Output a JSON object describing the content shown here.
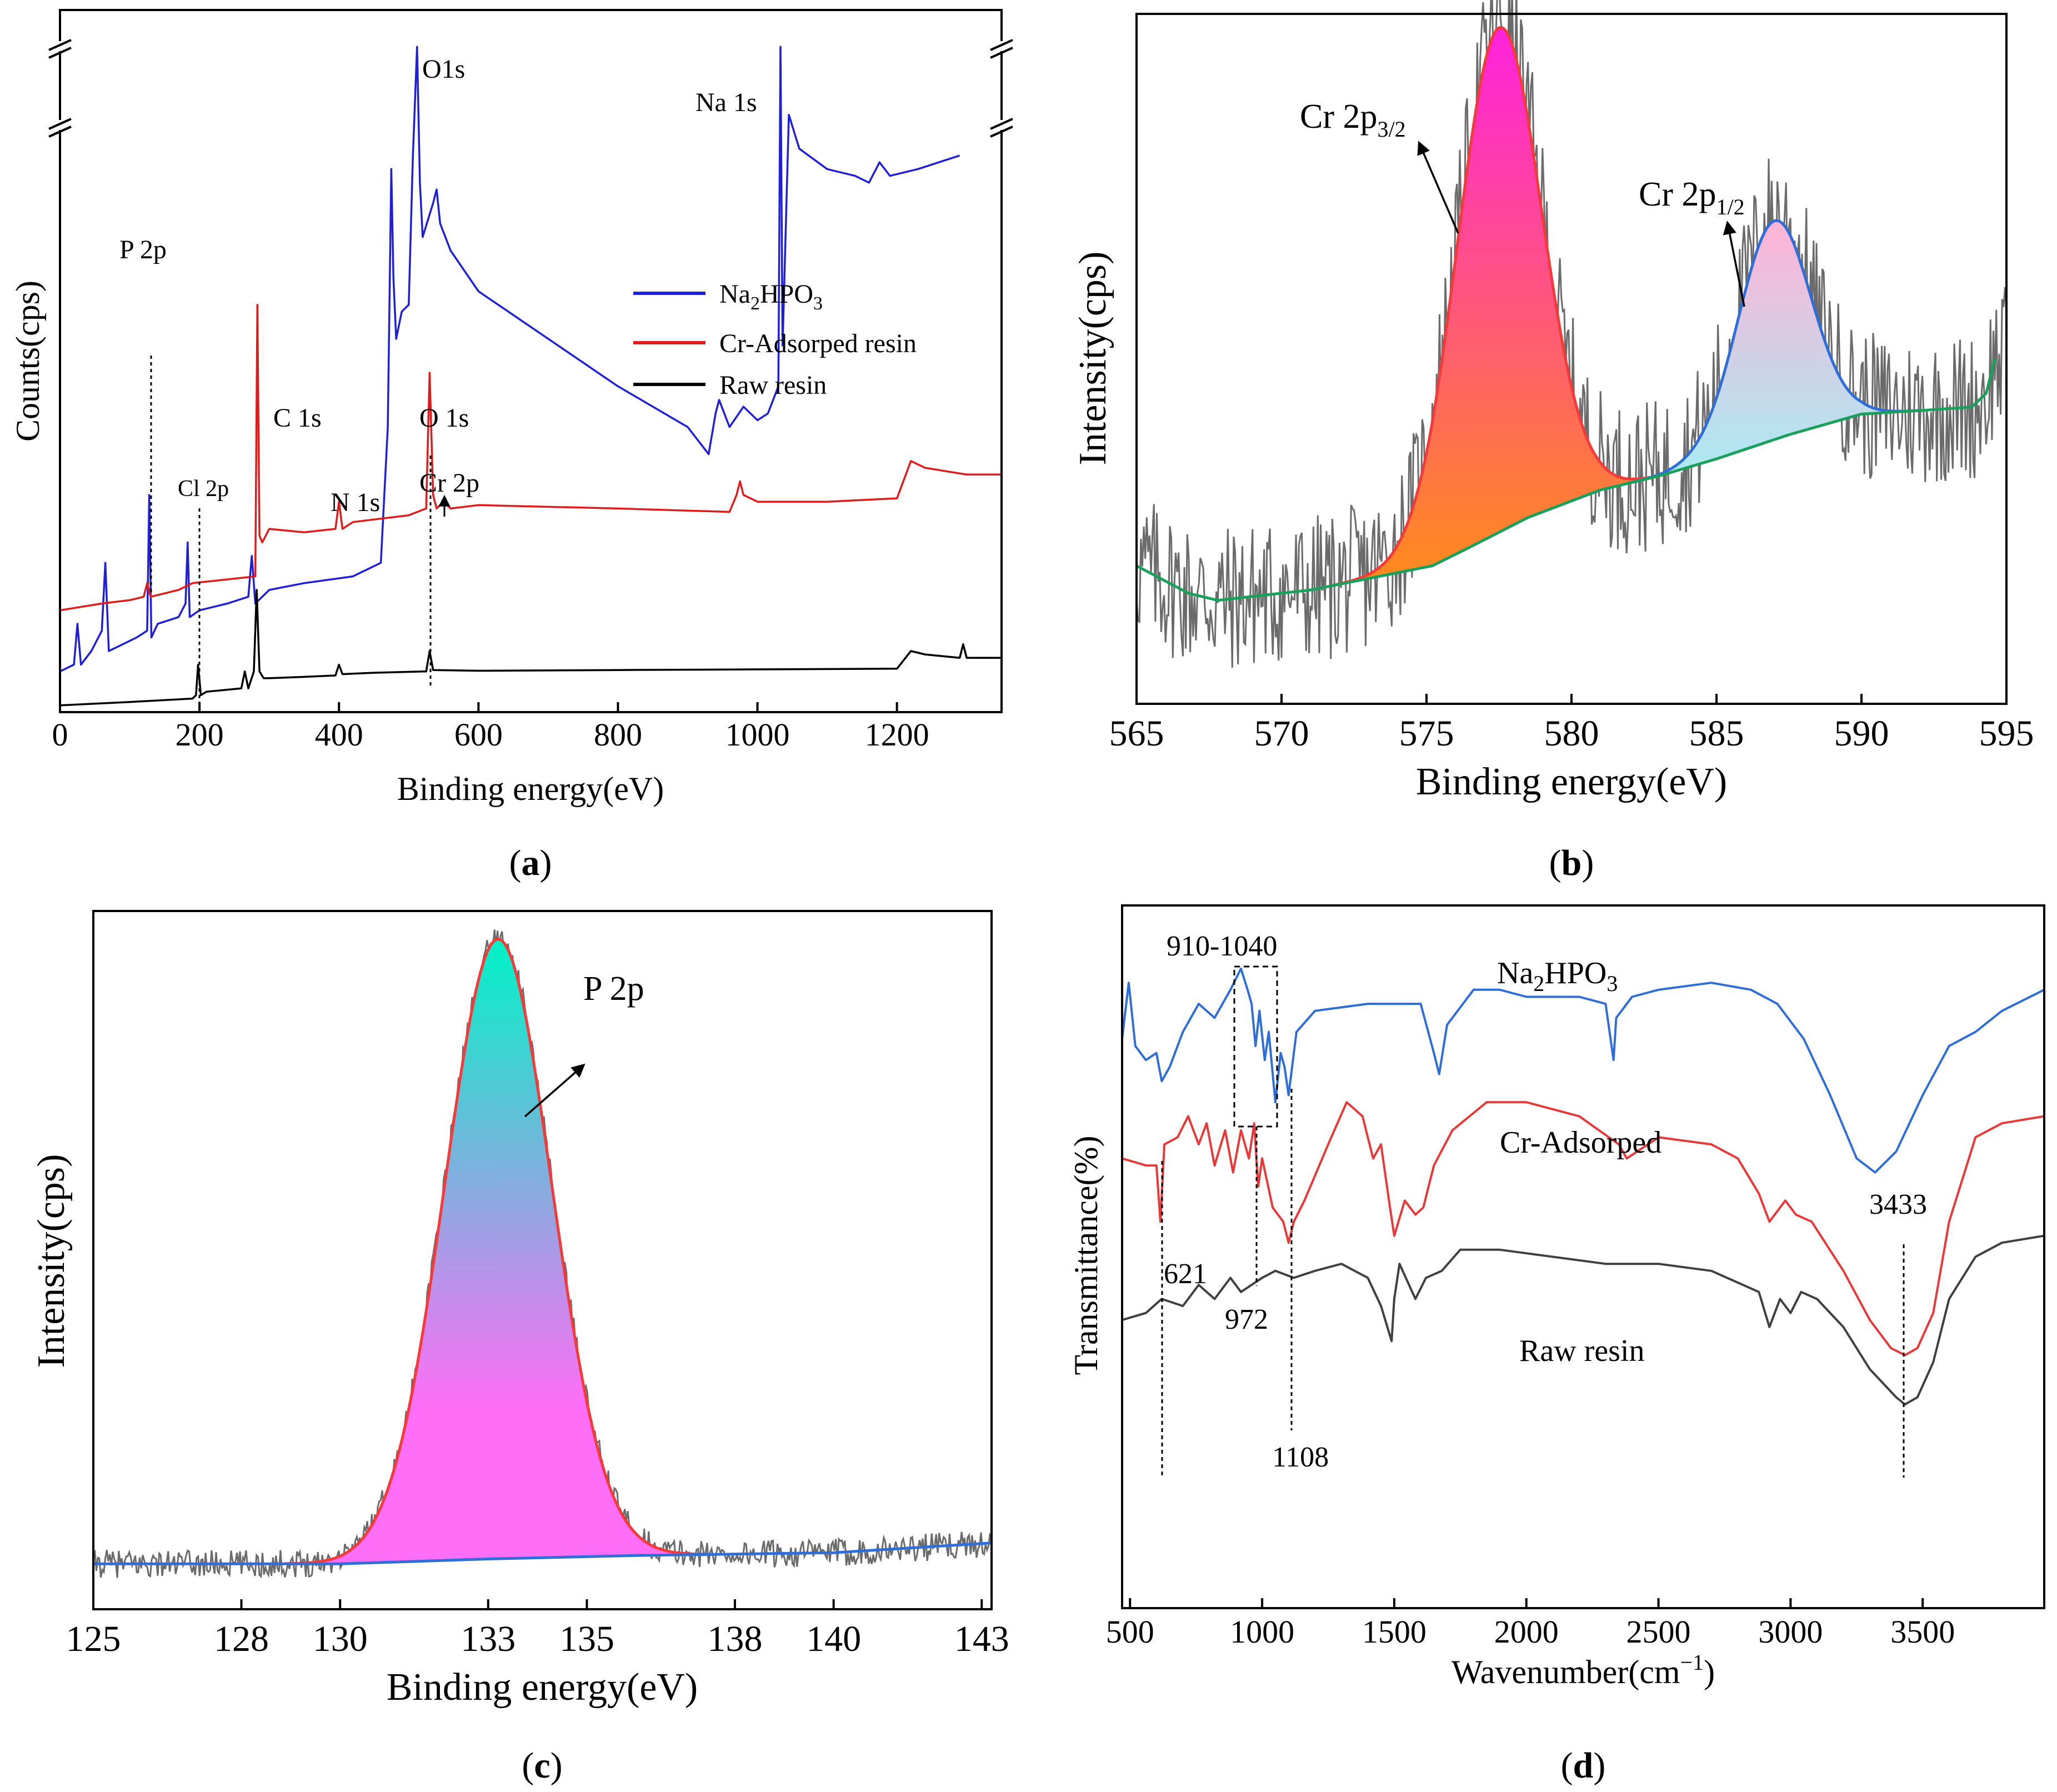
{
  "chart_data": [
    {
      "id": "a",
      "type": "line",
      "caption": "a",
      "xlabel": "Binding energy(eV)",
      "ylabel": "Counts(cps)",
      "xlim": [
        0,
        1350
      ],
      "ylim": [
        0,
        100
      ],
      "xticks": [
        0,
        200,
        400,
        600,
        800,
        1000,
        1200
      ],
      "legend_position": "right",
      "legend": [
        {
          "label": "Na₂HPO₃",
          "main": "Na",
          "sub": "2",
          "rest": "HPO",
          "sub2": "3",
          "color": "#1f1fd8"
        },
        {
          "label": "Cr-Adsorped resin",
          "color": "#e01b1b"
        },
        {
          "label": "Raw resin",
          "color": "#000000"
        }
      ],
      "series": [
        {
          "name": "Na2HPO3",
          "color": "#1f1fd8",
          "x": [
            0,
            20,
            25,
            30,
            45,
            60,
            65,
            70,
            90,
            110,
            125,
            128,
            131,
            140,
            170,
            180,
            183,
            186,
            200,
            240,
            270,
            275,
            280,
            300,
            350,
            420,
            460,
            470,
            475,
            478,
            482,
            490,
            500,
            506,
            512,
            516,
            520,
            535,
            540,
            545,
            560,
            600,
            700,
            800,
            900,
            930,
            940,
            945,
            960,
            980,
            1000,
            1015,
            1030,
            1033,
            1036,
            1045,
            1060,
            1100,
            1140,
            1160,
            1175,
            1190,
            1230,
            1260,
            1290
          ],
          "y": [
            6,
            7,
            13,
            7,
            9,
            12,
            22,
            9,
            10,
            11,
            12,
            32,
            11,
            13,
            14,
            16,
            25,
            14,
            15,
            16,
            17,
            23,
            16,
            18,
            19,
            20,
            22,
            42,
            80,
            64,
            55,
            59,
            60,
            82,
            98,
            78,
            70,
            75,
            77,
            72,
            68,
            62,
            55,
            48,
            42,
            38,
            44,
            46,
            42,
            45,
            43,
            44,
            48,
            98,
            54,
            88,
            83,
            80,
            79,
            78,
            81,
            79,
            80,
            81,
            82
          ]
        },
        {
          "name": "Cr-Adsorped resin",
          "color": "#e01b1b",
          "x": [
            0,
            60,
            100,
            120,
            125,
            130,
            150,
            170,
            190,
            280,
            283,
            286,
            290,
            300,
            350,
            395,
            400,
            405,
            420,
            500,
            525,
            530,
            535,
            540,
            550,
            560,
            600,
            800,
            960,
            970,
            975,
            980,
            1000,
            1100,
            1200,
            1220,
            1240,
            1300,
            1350
          ],
          "y": [
            15,
            16,
            16.5,
            17,
            19,
            17,
            17.5,
            18,
            19,
            20,
            60,
            26,
            25,
            27,
            26.5,
            27,
            31,
            27,
            28,
            29,
            30,
            50,
            32,
            30,
            31,
            30,
            30.5,
            30,
            29.5,
            32,
            34,
            32,
            31,
            31,
            31.5,
            37,
            36,
            35,
            35
          ]
        },
        {
          "name": "Raw resin",
          "color": "#000000",
          "x": [
            0,
            100,
            190,
            195,
            198,
            202,
            210,
            260,
            265,
            270,
            278,
            282,
            286,
            292,
            300,
            350,
            395,
            400,
            405,
            450,
            525,
            530,
            535,
            600,
            800,
            1000,
            1200,
            1220,
            1240,
            1290,
            1295,
            1300,
            1350
          ],
          "y": [
            1,
            1.5,
            2,
            2.5,
            7,
            2.5,
            3,
            3.5,
            6,
            3.5,
            6,
            18,
            6,
            5,
            5,
            5.2,
            5.4,
            7,
            5.6,
            5.8,
            6,
            9,
            6.2,
            6.1,
            6.2,
            6.3,
            6.4,
            9,
            8.5,
            8,
            10,
            8,
            8
          ]
        }
      ],
      "annotations": [
        "P 2p",
        "O1s",
        "Na 1s",
        "C 1s",
        "O 1s",
        "N 1s",
        "Cl 2p",
        "Cr 2p"
      ]
    },
    {
      "id": "b",
      "type": "area",
      "caption": "b",
      "xlabel": "Binding energy(eV)",
      "ylabel": "Intensity(cps)",
      "xlim": [
        565,
        595
      ],
      "ylim": [
        0,
        100
      ],
      "xticks": [
        565,
        570,
        575,
        580,
        585,
        590,
        595
      ],
      "peaks": [
        {
          "name": "Cr 2p3/2",
          "main": "Cr 2p",
          "sub": "3/2",
          "center": 577.5,
          "height": 98,
          "sigma": 1.45,
          "fill_top": "#ff22dd",
          "fill_bottom": "#ff8c1a",
          "stroke": "#f53a3a"
        },
        {
          "name": "Cr 2p1/2",
          "main": "Cr 2p",
          "sub": "1/2",
          "center": 587.0,
          "height": 70,
          "sigma": 1.25,
          "fill_top": "#ffb2d6",
          "fill_bottom": "#a8ecf4",
          "stroke": "#2f6ed8"
        }
      ],
      "background": {
        "x": [
          565,
          566.8,
          567.8,
          571,
          574,
          575.2,
          576.4,
          578.5,
          581,
          583,
          585,
          587.5,
          590,
          592,
          593.8,
          594.3,
          594.6
        ],
        "y": [
          20,
          16,
          15,
          16.5,
          19,
          20,
          22.5,
          27,
          31,
          33,
          35.5,
          39,
          42,
          42.5,
          43,
          45,
          50
        ],
        "color": "#19a05a"
      },
      "raw_color": "#6b6b6b"
    },
    {
      "id": "c",
      "type": "area",
      "caption": "c",
      "xlabel": "Binding energy(eV)",
      "ylabel": "Intensity(cps)",
      "xlim": [
        125,
        143.2
      ],
      "ylim": [
        0,
        100
      ],
      "xticks": [
        125,
        128,
        130,
        133,
        135,
        138,
        140,
        143
      ],
      "peaks": [
        {
          "name": "P 2p",
          "main": "P 2p",
          "sub": "",
          "center": 133.2,
          "height": 96,
          "sigma": 1.08,
          "fill_top": "#00f2c6",
          "fill_bottom": "#ff6ef6",
          "stroke": "#f53a3a"
        }
      ],
      "background": {
        "x": [
          125,
          130,
          133,
          136,
          140,
          143.2
        ],
        "y": [
          6.5,
          6.5,
          7.2,
          7.7,
          8.1,
          9.5
        ],
        "color": "#2f6ed8"
      },
      "raw_color": "#6b6b6b"
    },
    {
      "id": "d",
      "type": "line",
      "caption": "d",
      "xlabel": "Wavenumber(cm⁻¹)",
      "xlabel_main": "Wavenumber(cm",
      "xlabel_sup": "−1",
      "ylabel": "Transmittance(%)",
      "xlim": [
        470,
        3960
      ],
      "ylim": [
        0,
        100
      ],
      "xticks": [
        500,
        1000,
        1500,
        2000,
        2500,
        3000,
        3500
      ],
      "series": [
        {
          "name": "Na2HPO3",
          "label": "Na₂HPO₃",
          "main": "Na",
          "sub": "2",
          "rest": "HPO",
          "sub2": "3",
          "color": "#2f6ed8",
          "x": [
            470,
            495,
            520,
            560,
            600,
            620,
            650,
            700,
            760,
            820,
            880,
            920,
            945,
            960,
            975,
            990,
            1010,
            1025,
            1050,
            1070,
            1085,
            1100,
            1130,
            1200,
            1400,
            1600,
            1650,
            1670,
            1700,
            1760,
            1800,
            1900,
            2000,
            2200,
            2300,
            2330,
            2340,
            2360,
            2400,
            2500,
            2700,
            2850,
            2950,
            3050,
            3150,
            3250,
            3320,
            3400,
            3500,
            3600,
            3700,
            3800,
            3960
          ],
          "y": [
            81,
            89,
            80,
            78,
            79,
            75,
            77,
            82,
            86,
            84,
            88,
            91,
            88,
            86,
            80,
            85,
            78,
            82,
            72,
            79,
            77,
            73,
            82,
            85,
            86,
            86,
            79,
            76,
            83,
            86,
            88,
            88,
            87,
            87,
            86,
            78,
            84,
            85,
            87,
            88,
            89,
            88,
            86,
            81,
            73,
            64,
            62,
            65,
            73,
            80,
            82,
            85,
            88
          ]
        },
        {
          "name": "Cr-Adsorped",
          "label": "Cr-Adsorped",
          "color": "#e83838",
          "x": [
            470,
            560,
            600,
            615,
            630,
            680,
            720,
            760,
            790,
            820,
            860,
            890,
            920,
            950,
            970,
            985,
            1000,
            1040,
            1080,
            1100,
            1120,
            1160,
            1250,
            1320,
            1380,
            1420,
            1450,
            1480,
            1500,
            1540,
            1580,
            1610,
            1650,
            1720,
            1850,
            2000,
            2200,
            2350,
            2380,
            2500,
            2700,
            2800,
            2880,
            2920,
            2980,
            3020,
            3080,
            3200,
            3300,
            3380,
            3433,
            3480,
            3540,
            3600,
            3700,
            3800,
            3960
          ],
          "y": [
            64,
            63,
            63,
            55,
            66,
            67,
            70,
            66,
            69,
            63,
            68,
            62,
            68,
            64,
            69,
            60,
            64,
            57,
            55,
            52,
            55,
            58,
            66,
            72,
            70,
            64,
            66,
            58,
            53,
            58,
            56,
            57,
            63,
            68,
            72,
            72,
            70,
            66,
            64,
            67,
            66,
            64,
            59,
            55,
            58,
            56,
            55,
            48,
            41,
            37,
            36,
            37,
            42,
            55,
            67,
            69,
            70
          ]
        },
        {
          "name": "Raw resin",
          "label": "Raw resin",
          "color": "#404040",
          "x": [
            470,
            560,
            620,
            700,
            760,
            820,
            880,
            920,
            960,
            1000,
            1050,
            1120,
            1200,
            1300,
            1400,
            1450,
            1490,
            1500,
            1520,
            1580,
            1620,
            1680,
            1750,
            1900,
            2100,
            2300,
            2500,
            2700,
            2880,
            2920,
            2960,
            3000,
            3040,
            3100,
            3200,
            3300,
            3400,
            3433,
            3480,
            3540,
            3600,
            3700,
            3800,
            3960
          ],
          "y": [
            41,
            42,
            44,
            43,
            46,
            44,
            47,
            45,
            46,
            47,
            48,
            47,
            48,
            49,
            47,
            43,
            38,
            44,
            49,
            44,
            47,
            48,
            51,
            51,
            50,
            49,
            49,
            48,
            45,
            40,
            44,
            42,
            45,
            44,
            40,
            34,
            30,
            29,
            30,
            35,
            44,
            50,
            52,
            53
          ]
        }
      ],
      "box_label": "910-1040",
      "ref_lines": [
        "621",
        "972",
        "1108",
        "3433"
      ]
    }
  ]
}
